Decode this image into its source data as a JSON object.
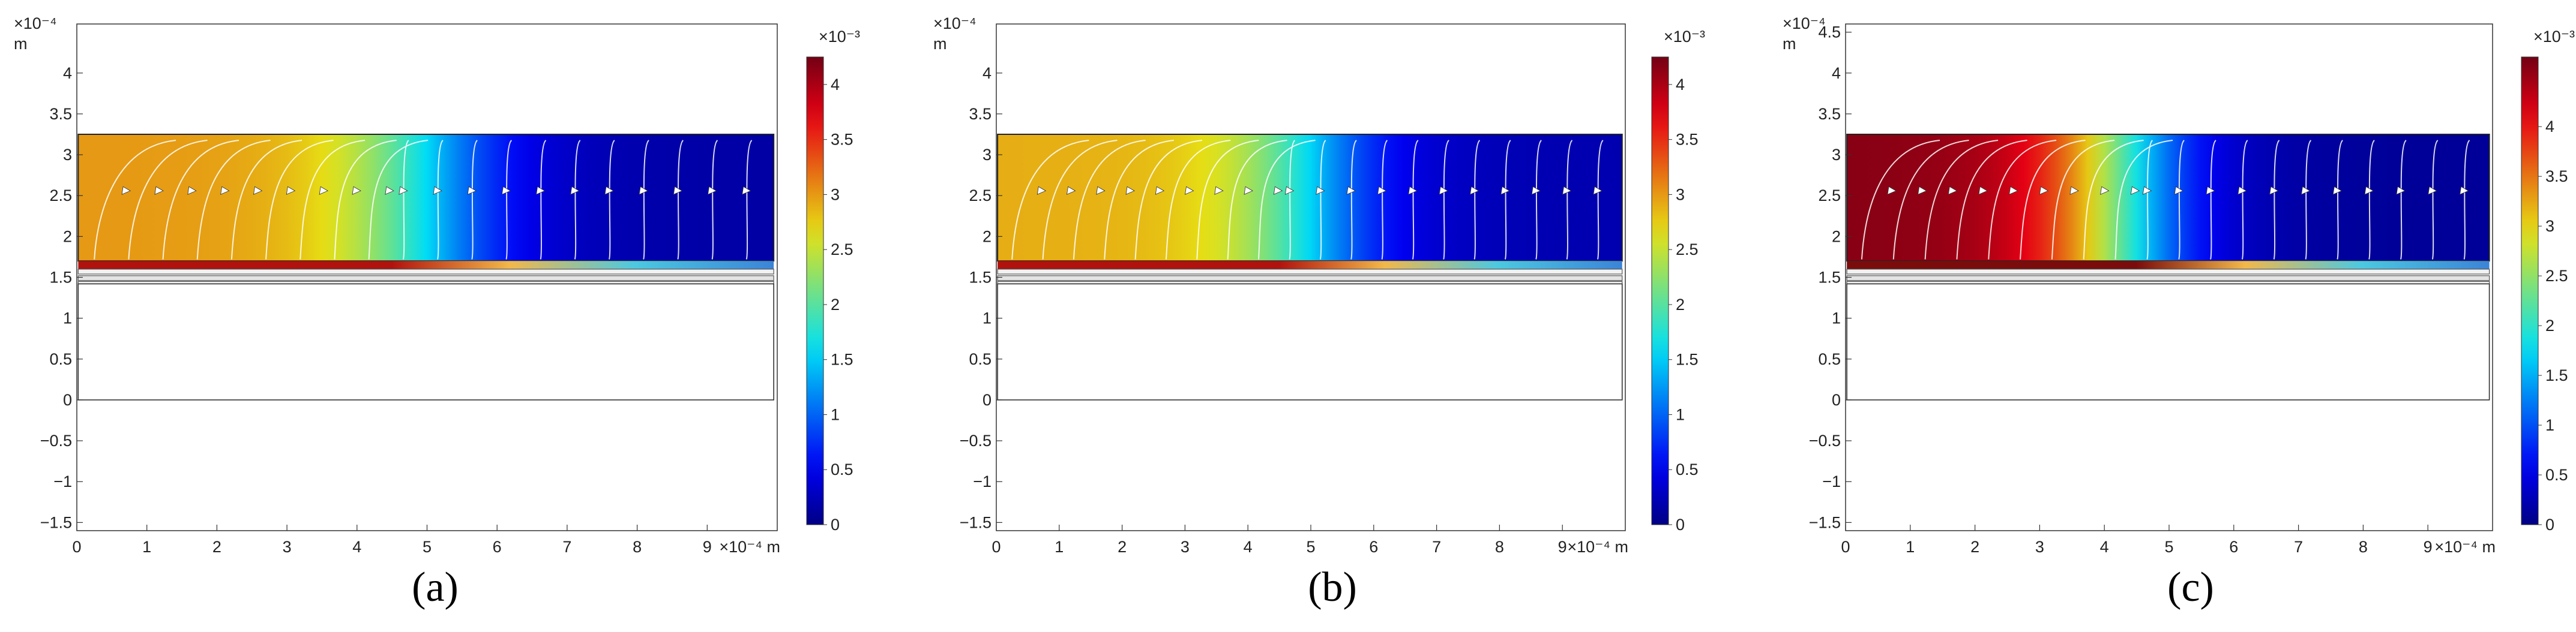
{
  "panels": [
    {
      "id": "a",
      "caption": "(a)",
      "x_exp": "×10⁻⁴ m",
      "y_exp": "×10⁻⁴",
      "y_unit": "m",
      "cb_exp": "×10⁻³",
      "field": {
        "max": 4.25,
        "left": 3.0,
        "right": 0.15,
        "mid_x": 5.0,
        "width": 1.6,
        "strip": "hot"
      },
      "x_ticks": [
        "0",
        "1",
        "2",
        "3",
        "4",
        "5",
        "6",
        "7",
        "8",
        "9"
      ],
      "y_ticks": [
        "−1.5",
        "−1",
        "−0.5",
        "0",
        "0.5",
        "1",
        "1.5",
        "2",
        "2.5",
        "3",
        "3.5",
        "4"
      ],
      "cb_ticks": [
        "0",
        "0.5",
        "1",
        "1.5",
        "2",
        "2.5",
        "3",
        "3.5",
        "4"
      ]
    },
    {
      "id": "b",
      "caption": "(b)",
      "x_exp": "×10⁻⁴ m",
      "y_exp": "×10⁻⁴",
      "y_unit": "m",
      "cb_exp": "×10⁻³",
      "field": {
        "max": 4.25,
        "left": 2.9,
        "right": 0.2,
        "mid_x": 5.0,
        "width": 1.6,
        "strip": "hot"
      },
      "x_ticks": [
        "0",
        "1",
        "2",
        "3",
        "4",
        "5",
        "6",
        "7",
        "8",
        "9"
      ],
      "y_ticks": [
        "−1.5",
        "−1",
        "−0.5",
        "0",
        "0.5",
        "1",
        "1.5",
        "2",
        "2.5",
        "3",
        "3.5",
        "4"
      ],
      "cb_ticks": [
        "0",
        "0.5",
        "1",
        "1.5",
        "2",
        "2.5",
        "3",
        "3.5",
        "4"
      ]
    },
    {
      "id": "c",
      "caption": "(c)",
      "x_exp": "×10⁻⁴ m",
      "y_exp": "×10⁻⁴",
      "y_unit": "m",
      "cb_exp": "×10⁻³",
      "field": {
        "max": 4.7,
        "left": 4.6,
        "right": 0.1,
        "mid_x": 4.2,
        "width": 1.5,
        "strip": "dark"
      },
      "x_ticks": [
        "0",
        "1",
        "2",
        "3",
        "4",
        "5",
        "6",
        "7",
        "8",
        "9"
      ],
      "y_ticks": [
        "−1.5",
        "−1",
        "−0.5",
        "0",
        "0.5",
        "1",
        "1.5",
        "2",
        "2.5",
        "3",
        "3.5",
        "4",
        "4.5"
      ],
      "cb_ticks": [
        "0",
        "0.5",
        "1",
        "1.5",
        "2",
        "2.5",
        "3",
        "3.5",
        "4"
      ]
    }
  ],
  "chart_data": {
    "type": "heatmap",
    "description_units": {
      "x": "m (×10⁻⁴)",
      "y": "m (×10⁻⁴)",
      "color": "×10⁻³"
    },
    "xlim": [
      0,
      10
    ],
    "ylim": [
      -1.6,
      4.6
    ],
    "layers_y": {
      "substrate": [
        0,
        1.45
      ],
      "thin_layers": [
        1.45,
        1.7
      ],
      "field_domain": [
        1.7,
        3.25
      ]
    },
    "panels": [
      {
        "label": "a",
        "color_range": [
          0,
          4.25
        ],
        "left_value": 3.0,
        "right_value": 0.15
      },
      {
        "label": "b",
        "color_range": [
          0,
          4.25
        ],
        "left_value": 2.9,
        "right_value": 0.2
      },
      {
        "label": "c",
        "color_range": [
          0,
          4.7
        ],
        "left_value": 4.6,
        "right_value": 0.1
      }
    ]
  }
}
